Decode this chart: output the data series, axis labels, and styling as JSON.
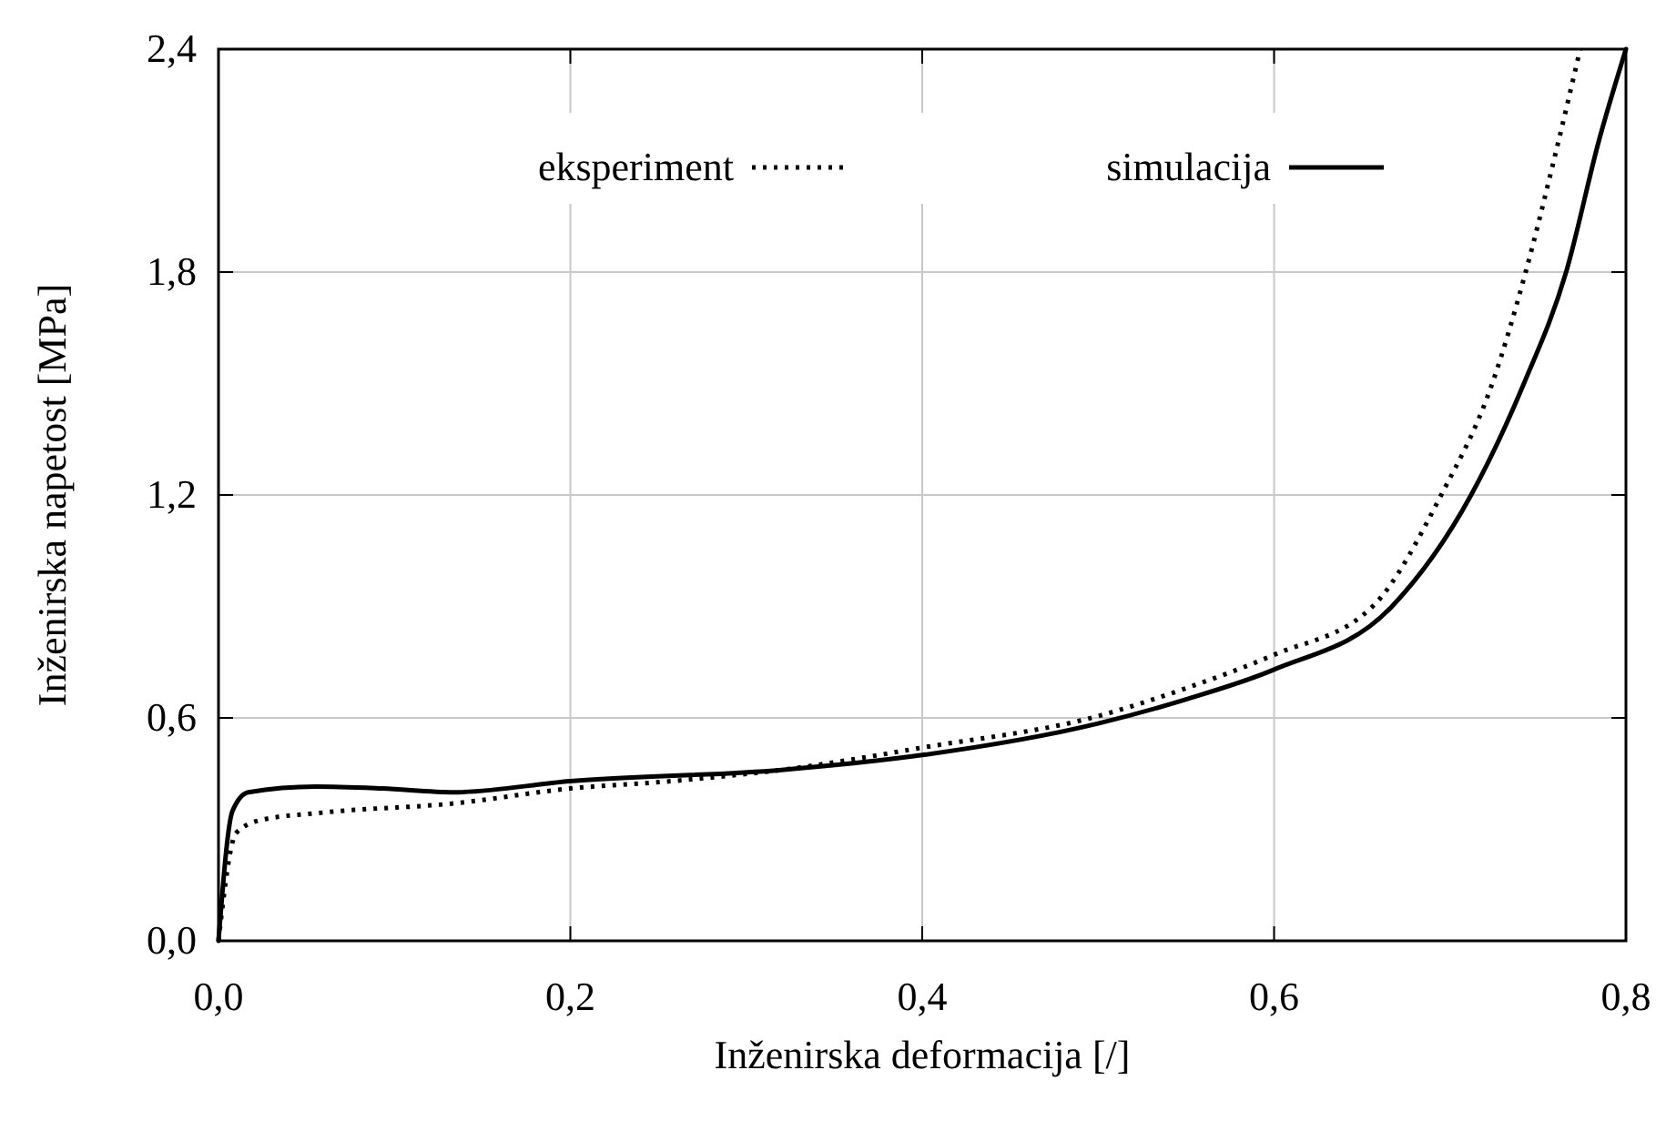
{
  "chart_data": {
    "type": "line",
    "xlabel": "Inženirska deformacija [/]",
    "ylabel": "Inženirska napetost [MPa]",
    "xlim": [
      0,
      0.8
    ],
    "xticks": [
      {
        "value": 0,
        "label": "0,0"
      },
      {
        "value": 0.2,
        "label": "0,2"
      },
      {
        "value": 0.4,
        "label": "0,4"
      },
      {
        "value": 0.6,
        "label": "0,6"
      },
      {
        "value": 0.8,
        "label": "0,8"
      }
    ],
    "ylim": [
      0,
      2.4
    ],
    "yticks": [
      {
        "value": 0,
        "label": "0,0"
      },
      {
        "value": 0.6,
        "label": "0,6"
      },
      {
        "value": 1.2,
        "label": "1,2"
      },
      {
        "value": 1.8,
        "label": "1,8"
      },
      {
        "value": 2.4,
        "label": "2,4"
      }
    ],
    "grid": true,
    "legend": "top",
    "series": [
      {
        "name": "eksperiment",
        "color": "#000000",
        "line_style": "dotted",
        "x": [
          0,
          0.01,
          0.024,
          0.059,
          0.134,
          0.2,
          0.258,
          0.32,
          0.4,
          0.5,
          0.55,
          0.6,
          0.656,
          0.695,
          0.724,
          0.743,
          0.759,
          0.774
        ],
        "values": [
          0,
          0.29,
          0.325,
          0.345,
          0.37,
          0.41,
          0.43,
          0.46,
          0.52,
          0.605,
          0.68,
          0.77,
          0.9,
          1.2,
          1.5,
          1.8,
          2.1,
          2.4
        ]
      },
      {
        "name": "simulacija",
        "color": "#000000",
        "line_style": "solid",
        "x": [
          0,
          0.008,
          0.017,
          0.055,
          0.093,
          0.134,
          0.2,
          0.32,
          0.4,
          0.5,
          0.55,
          0.6,
          0.667,
          0.712,
          0.742,
          0.766,
          0.785,
          0.8
        ],
        "values": [
          0,
          0.35,
          0.4,
          0.415,
          0.41,
          0.4,
          0.43,
          0.46,
          0.5,
          0.585,
          0.65,
          0.73,
          0.9,
          1.2,
          1.5,
          1.8,
          2.16,
          2.4
        ]
      }
    ]
  }
}
